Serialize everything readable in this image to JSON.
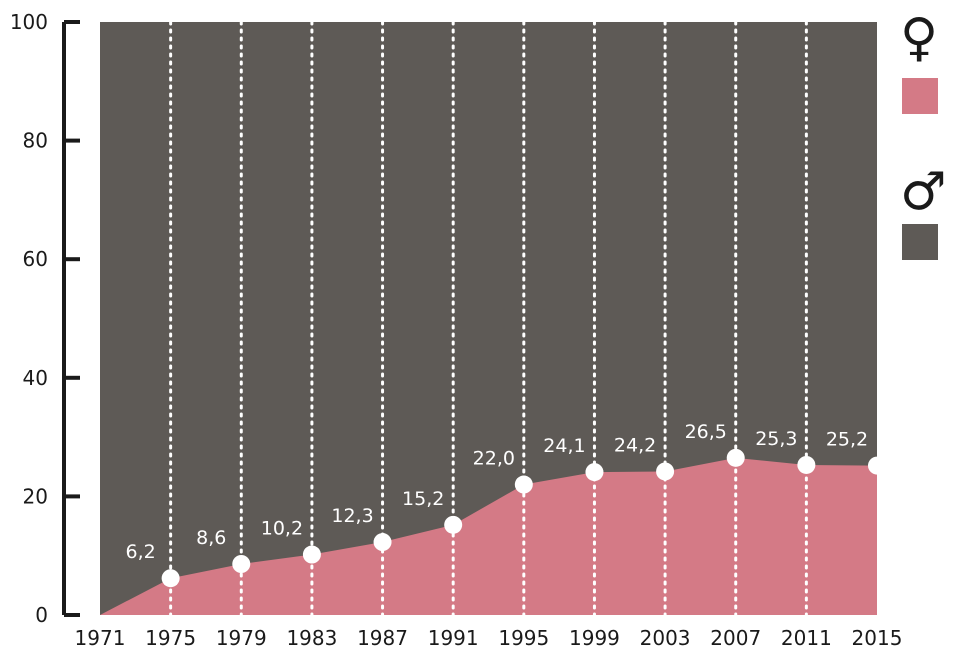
{
  "chart_data": {
    "type": "area",
    "x": [
      1971,
      1975,
      1979,
      1983,
      1987,
      1991,
      1995,
      1999,
      2003,
      2007,
      2011,
      2015
    ],
    "female_values": [
      0,
      6.2,
      8.6,
      10.2,
      12.3,
      15.2,
      22.0,
      24.1,
      24.2,
      26.5,
      25.3,
      25.2
    ],
    "data_labels": [
      "",
      "6,2",
      "8,6",
      "10,2",
      "12,3",
      "15,2",
      "22,0",
      "24,1",
      "24,2",
      "26,5",
      "25,3",
      "25,2"
    ],
    "x_tick_labels": [
      "1971",
      "1975",
      "1979",
      "1983",
      "1987",
      "1991",
      "1995",
      "1999",
      "2003",
      "2007",
      "2011",
      "2015"
    ],
    "y_ticks": [
      0,
      20,
      40,
      60,
      80,
      100
    ],
    "y_tick_labels": [
      "0",
      "20",
      "40",
      "60",
      "80",
      "100"
    ],
    "ylim": [
      0,
      100
    ],
    "xlim": [
      1971,
      2015
    ],
    "stacked_total": 100,
    "title": "",
    "xlabel": "",
    "ylabel": "",
    "grid": "dotted vertical lines at each year",
    "legend_position": "right",
    "colors": {
      "female": "#d47a86",
      "male": "#5e5a56",
      "marker": "#ffffff",
      "axis": "#1a1a1a"
    }
  },
  "legend": {
    "female_symbol": "♀",
    "male_symbol": "♂"
  }
}
